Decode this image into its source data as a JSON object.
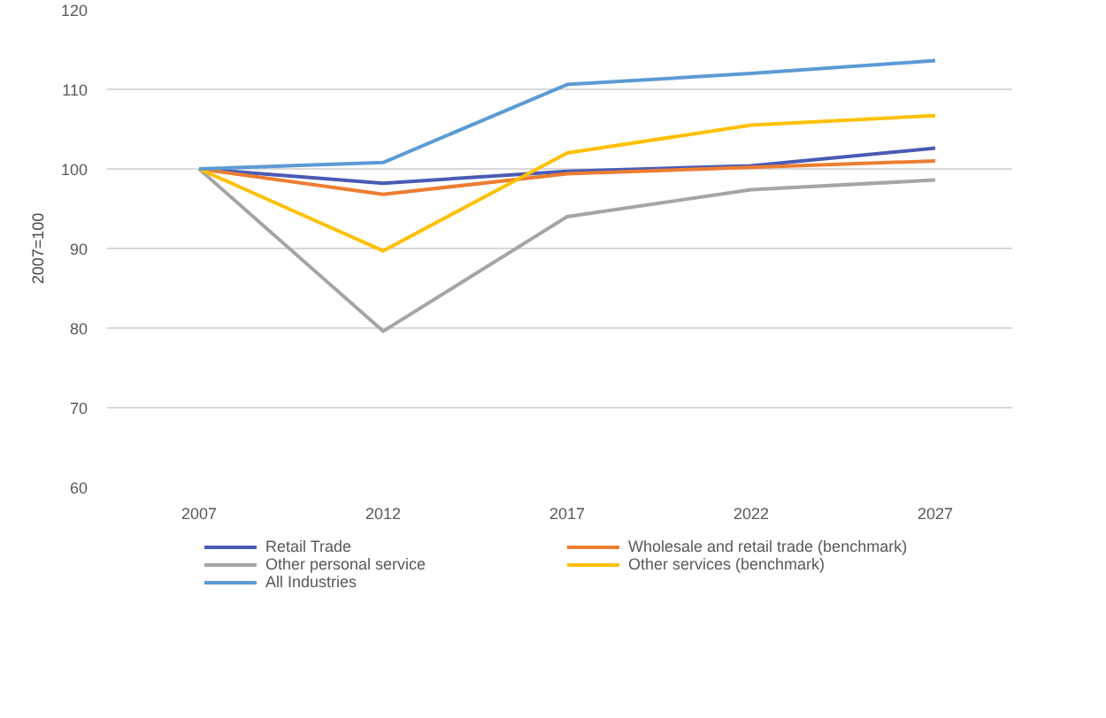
{
  "chart_data": {
    "type": "line",
    "ylabel": "2007=100",
    "categories": [
      "2007",
      "2012",
      "2017",
      "2022",
      "2027"
    ],
    "series": [
      {
        "name": "Retail Trade",
        "color": "#4a5bb5",
        "values": [
          100,
          98.2,
          99.7,
          100.4,
          102.6
        ]
      },
      {
        "name": "Wholesale and retail trade (benchmark)",
        "color": "#ed7d31",
        "values": [
          100,
          96.8,
          99.4,
          100.2,
          101
        ]
      },
      {
        "name": "Other personal service",
        "color": "#a5a5a5",
        "values": [
          100,
          79.6,
          94,
          97.4,
          98.6
        ]
      },
      {
        "name": "Other services (benchmark)",
        "color": "#ffc000",
        "values": [
          100,
          89.7,
          102,
          105.5,
          106.7
        ]
      },
      {
        "name": "All Industries",
        "color": "#5b9bd5",
        "values": [
          100,
          100.8,
          110.6,
          112,
          113.6
        ]
      }
    ],
    "ylim": [
      60,
      120
    ],
    "yticks": [
      60,
      70,
      80,
      90,
      100,
      110,
      120
    ],
    "grid": "y",
    "legend": "bottom"
  }
}
